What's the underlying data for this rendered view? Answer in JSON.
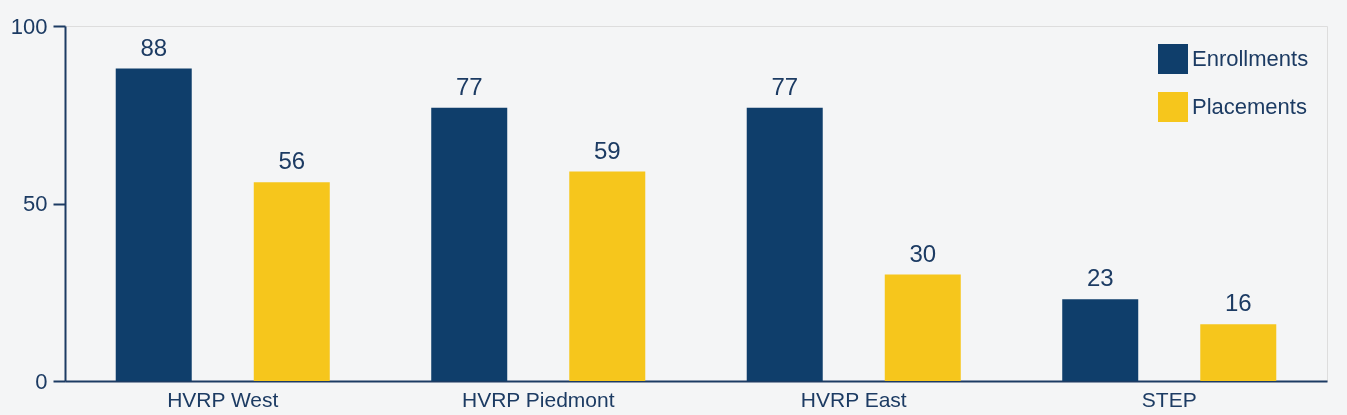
{
  "chart_data": {
    "type": "bar",
    "categories": [
      "HVRP West",
      "HVRP Piedmont",
      "HVRP East",
      "STEP"
    ],
    "series": [
      {
        "name": "Enrollments",
        "color": "#0f3e6b",
        "values": [
          88,
          77,
          77,
          23
        ]
      },
      {
        "name": "Placements",
        "color": "#f6c61c",
        "values": [
          56,
          59,
          30,
          16
        ]
      }
    ],
    "ylim": [
      0,
      100
    ],
    "yticks": [
      0,
      50,
      100
    ],
    "grid": false,
    "legend": "top right",
    "data_labels": true
  }
}
